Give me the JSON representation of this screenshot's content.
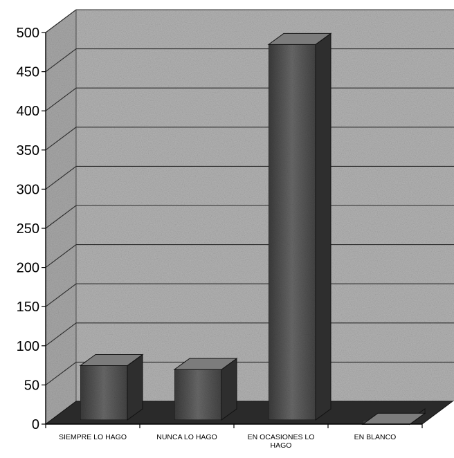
{
  "chart_data": {
    "type": "bar",
    "three_d": true,
    "categories": [
      [
        "SIEMPRE LO HAGO"
      ],
      [
        "NUNCA LO HAGO"
      ],
      [
        "EN OCASIONES LO",
        "HAGO"
      ],
      [
        "EN BLANCO"
      ]
    ],
    "values": [
      80,
      75,
      490,
      5
    ],
    "ylim": [
      0,
      500
    ],
    "yticks": [
      "0",
      "50",
      "100",
      "150",
      "200",
      "250",
      "300",
      "350",
      "400",
      "450",
      "500"
    ],
    "grid": true,
    "legend": "none",
    "title": "",
    "xlabel": "",
    "ylabel": "",
    "colors": {
      "wall": "#b4b4b4",
      "floor": "#2a2a2a",
      "bar": "#5a5a5a",
      "gridline": "#2b2b2b"
    }
  }
}
